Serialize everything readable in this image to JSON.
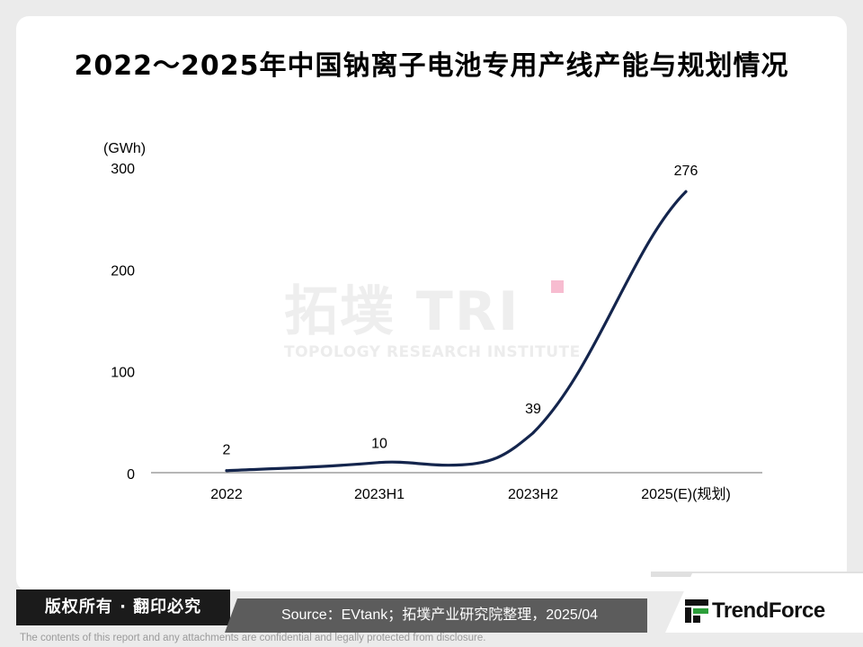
{
  "title": "2022～2025年中国钠离子电池专用产线产能与规划情况",
  "watermark": {
    "logo_text": "拓墣 TRI",
    "subtitle": "TOPOLOGY RESEARCH INSTITUTE"
  },
  "chart_data": {
    "type": "line",
    "title": "2022～2025年中国钠离子电池专用产线产能与规划情况",
    "unit_label": "(GWh)",
    "categories": [
      "2022",
      "2023H1",
      "2023H2",
      "2025(E)(规划)"
    ],
    "series": [
      {
        "values": [
          2,
          10,
          39,
          276
        ]
      }
    ],
    "data_labels": [
      "2",
      "10",
      "39",
      "276"
    ],
    "ylim": [
      0,
      300
    ],
    "y_ticks": [
      0,
      100,
      200,
      300
    ],
    "y_tick_labels": [
      "0",
      "100",
      "200",
      "300"
    ],
    "grid": false,
    "smooth": true,
    "line_color": "#14254d"
  },
  "footer": {
    "copyright": "版权所有 · 翻印必究",
    "source": "Source：EVtank；拓墣产业研究院整理，2025/04",
    "brand": "TrendForce",
    "disclaimer": "The contents of this report and any attachments are confidential and legally protected from disclosure."
  },
  "colors": {
    "brand_green": "#2c9e3a",
    "footer_dark": "#1b1b1b",
    "footer_gray": "#5c5c5c"
  }
}
